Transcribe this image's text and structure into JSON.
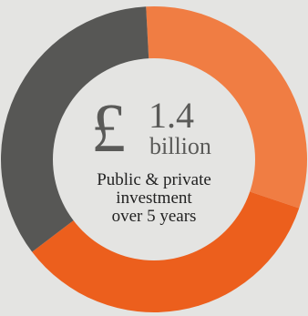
{
  "colors": {
    "background": "#e4e4e2",
    "center_fill": "#e4e4e2",
    "dark_grey": "#575755",
    "light_orange": "#f07d43",
    "dark_orange": "#ec5f1d"
  },
  "chart_data": {
    "type": "pie",
    "title": "",
    "slices": [
      {
        "value": 0.31,
        "color": "#f07d43"
      },
      {
        "value": 0.345,
        "color": "#ec5f1d"
      },
      {
        "value": 0.345,
        "color": "#575755"
      }
    ],
    "center": {
      "currency": "£",
      "amount": "1.4",
      "unit": "billion",
      "caption_lines": [
        "Public & private",
        "investment",
        "over 5 years"
      ]
    }
  }
}
